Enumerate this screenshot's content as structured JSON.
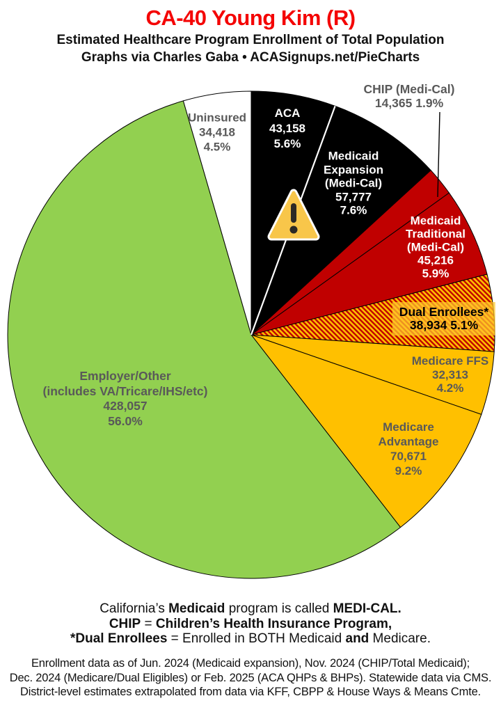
{
  "header": {
    "title": "CA-40 Young Kim (R)",
    "subtitle1": "Estimated Healthcare Program Enrollment of Total Population",
    "subtitle2": "Graphs via Charles Gaba   •   ACASignups.net/PieCharts"
  },
  "chart_data": {
    "type": "pie",
    "title": "Estimated Healthcare Program Enrollment of Total Population",
    "district": "CA-40",
    "representative": "Young Kim (R)",
    "units": "people",
    "start": "12 o'clock",
    "direction": "clockwise",
    "slices": [
      {
        "id": "aca",
        "name": "ACA",
        "value": 43158,
        "pct": 5.6,
        "color": "#000000",
        "label_lines": [
          "ACA",
          "43,158",
          "5.6%"
        ]
      },
      {
        "id": "medicaid-expansion",
        "name": "Medicaid Expansion (Medi-Cal)",
        "value": 57777,
        "pct": 7.6,
        "color": "#000000",
        "label_lines": [
          "Medicaid",
          "Expansion",
          "(Medi-Cal)",
          "57,777",
          "7.6%"
        ]
      },
      {
        "id": "chip",
        "name": "CHIP (Medi-Cal)",
        "value": 14365,
        "pct": 1.9,
        "color": "#C00000",
        "label_lines": [
          "CHIP (Medi-Cal)",
          "14,365 1.9%"
        ]
      },
      {
        "id": "medicaid-traditional",
        "name": "Medicaid Traditional (Medi-Cal)",
        "value": 45216,
        "pct": 5.9,
        "color": "#C00000",
        "label_lines": [
          "Medicaid",
          "Traditional",
          "(Medi-Cal)",
          "45,216",
          "5.9%"
        ]
      },
      {
        "id": "dual-enrollees",
        "name": "Dual Enrollees*",
        "value": 38934,
        "pct": 5.1,
        "color": "hatch",
        "label_lines": [
          "Dual Enrollees*",
          "38,934 5.1%"
        ]
      },
      {
        "id": "medicare-ffs",
        "name": "Medicare FFS",
        "value": 32313,
        "pct": 4.2,
        "color": "#FFC000",
        "label_lines": [
          "Medicare FFS",
          "32,313",
          "4.2%"
        ]
      },
      {
        "id": "medicare-advantage",
        "name": "Medicare Advantage",
        "value": 70671,
        "pct": 9.2,
        "color": "#FFC000",
        "label_lines": [
          "Medicare",
          "Advantage",
          "70,671",
          "9.2%"
        ]
      },
      {
        "id": "employer-other",
        "name": "Employer/Other (includes VA/Tricare/IHS/etc)",
        "value": 428057,
        "pct": 56.0,
        "color": "#92D050",
        "label_lines": [
          "Employer/Other",
          "(includes VA/Tricare/IHS/etc)",
          "428,057",
          "56.0%"
        ]
      },
      {
        "id": "uninsured",
        "name": "Uninsured",
        "value": 34418,
        "pct": 4.5,
        "color": "#FFFFFF",
        "label_lines": [
          "Uninsured",
          "34,418",
          "4.5%"
        ]
      }
    ],
    "hatch_colors": {
      "stripe": "#C00000",
      "base": "#FFC000"
    },
    "palette": {
      "black": "#000000",
      "red": "#C00000",
      "gold": "#FFC000",
      "green": "#92D050",
      "white": "#FFFFFF",
      "label_gray": "#595959",
      "title_red": "#F40404"
    }
  },
  "notes": {
    "lines": [
      {
        "segments": [
          {
            "text": "California’s ",
            "bold": false
          },
          {
            "text": "Medicaid",
            "bold": true
          },
          {
            "text": " program is called ",
            "bold": false
          },
          {
            "text": "MEDI-CAL.",
            "bold": true
          }
        ]
      },
      {
        "segments": [
          {
            "text": "CHIP",
            "bold": true
          },
          {
            "text": " = ",
            "bold": false
          },
          {
            "text": "Children’s Health Insurance Program,",
            "bold": true
          }
        ]
      },
      {
        "segments": [
          {
            "text": "*Dual Enrollees",
            "bold": true
          },
          {
            "text": " = Enrolled in BOTH Medicaid ",
            "bold": false
          },
          {
            "text": "and",
            "bold": true
          },
          {
            "text": " Medicare.",
            "bold": false
          }
        ]
      }
    ]
  },
  "footer": {
    "lines": [
      "Enrollment data as of Jun. 2024 (Medicaid expansion), Nov. 2024 (CHIP/Total Medicaid);",
      "Dec. 2024 (Medicare/Dual Eligibles) or Feb. 2025 (ACA QHPs & BHPs). Statewide data via CMS.",
      "District-level estimates extrapolated from data via KFF, CBPP & House Ways & Means Cmte."
    ]
  }
}
